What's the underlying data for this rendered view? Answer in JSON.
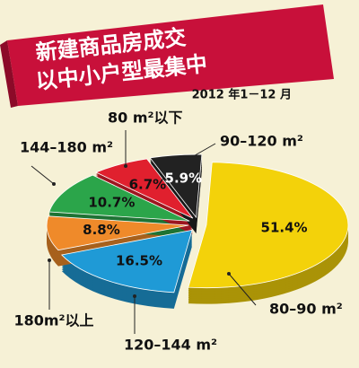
{
  "chart_data": {
    "type": "pie",
    "title": [
      "新建商品房成交",
      "以中小户型最集中"
    ],
    "subtitle": "2012 年1－12 月",
    "categories": [
      "80–90 m²",
      "120–144 m²",
      "180m²以上",
      "144–180 m²",
      "80 m²以下",
      "90–120 m²"
    ],
    "values": [
      51.4,
      16.5,
      8.8,
      10.7,
      6.7,
      5.9
    ],
    "value_labels": [
      "51.4%",
      "16.5%",
      "8.8%",
      "10.7%",
      "6.7%",
      "5.9%"
    ],
    "colors": [
      "#f3d20a",
      "#1f9ad6",
      "#ef8a2a",
      "#2ba54a",
      "#e0202e",
      "#222222"
    ]
  }
}
